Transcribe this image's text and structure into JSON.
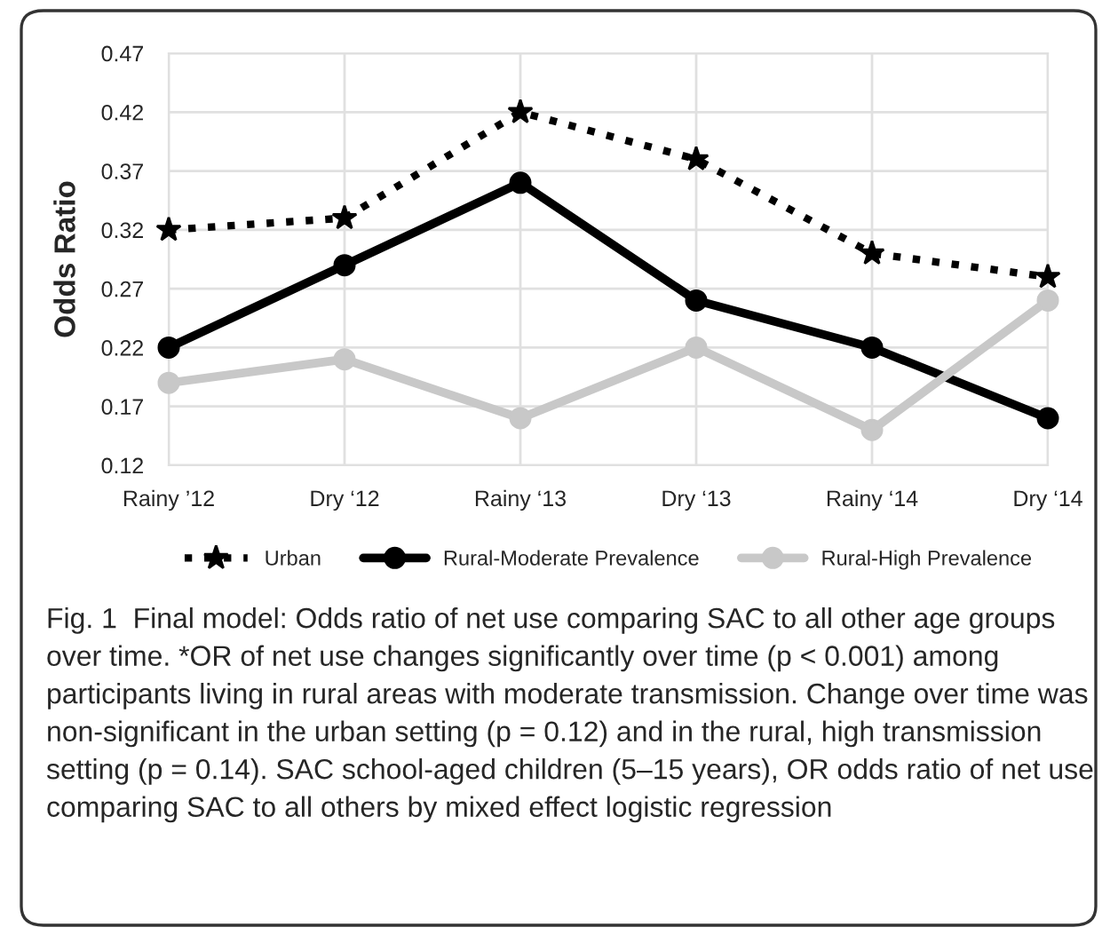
{
  "chart_data": {
    "type": "line",
    "ylabel": "Odds Ratio",
    "categories": [
      "Rainy ’12",
      "Dry ‘12",
      "Rainy ‘13",
      "Dry ‘13",
      "Rainy ‘14",
      "Dry ‘14"
    ],
    "series": [
      {
        "name": "Urban",
        "color": "#000000",
        "line_style": "dotted",
        "marker": "star",
        "values": [
          0.32,
          0.33,
          0.42,
          0.38,
          0.3,
          0.28
        ]
      },
      {
        "name": "Rural-Moderate Prevalence",
        "color": "#000000",
        "line_style": "solid",
        "marker": "circle",
        "values": [
          0.22,
          0.29,
          0.36,
          0.26,
          0.22,
          0.16
        ]
      },
      {
        "name": "Rural-High Prevalence",
        "color": "#c8c8c8",
        "line_style": "solid",
        "marker": "circle",
        "values": [
          0.19,
          0.21,
          0.16,
          0.22,
          0.15,
          0.26
        ]
      }
    ],
    "ylim": [
      0.12,
      0.47
    ],
    "yticks": [
      0.12,
      0.17,
      0.22,
      0.27,
      0.32,
      0.37,
      0.42,
      0.47
    ],
    "grid": true,
    "legend": "bottom",
    "annotations": [
      "Fig. 1  Final model: Odds ratio of net use comparing SAC to all other age groups over time. *OR of net use changes significantly over time (p < 0.001) among participants living in rural areas with moderate transmission. Change over time was non-significant in the urban setting (p = 0.12) and in the rural, high transmission setting (p = 0.14). SAC school-aged children (5–15 years), OR odds ratio of net use comparing SAC to all others by mixed effect logistic regression"
    ]
  }
}
